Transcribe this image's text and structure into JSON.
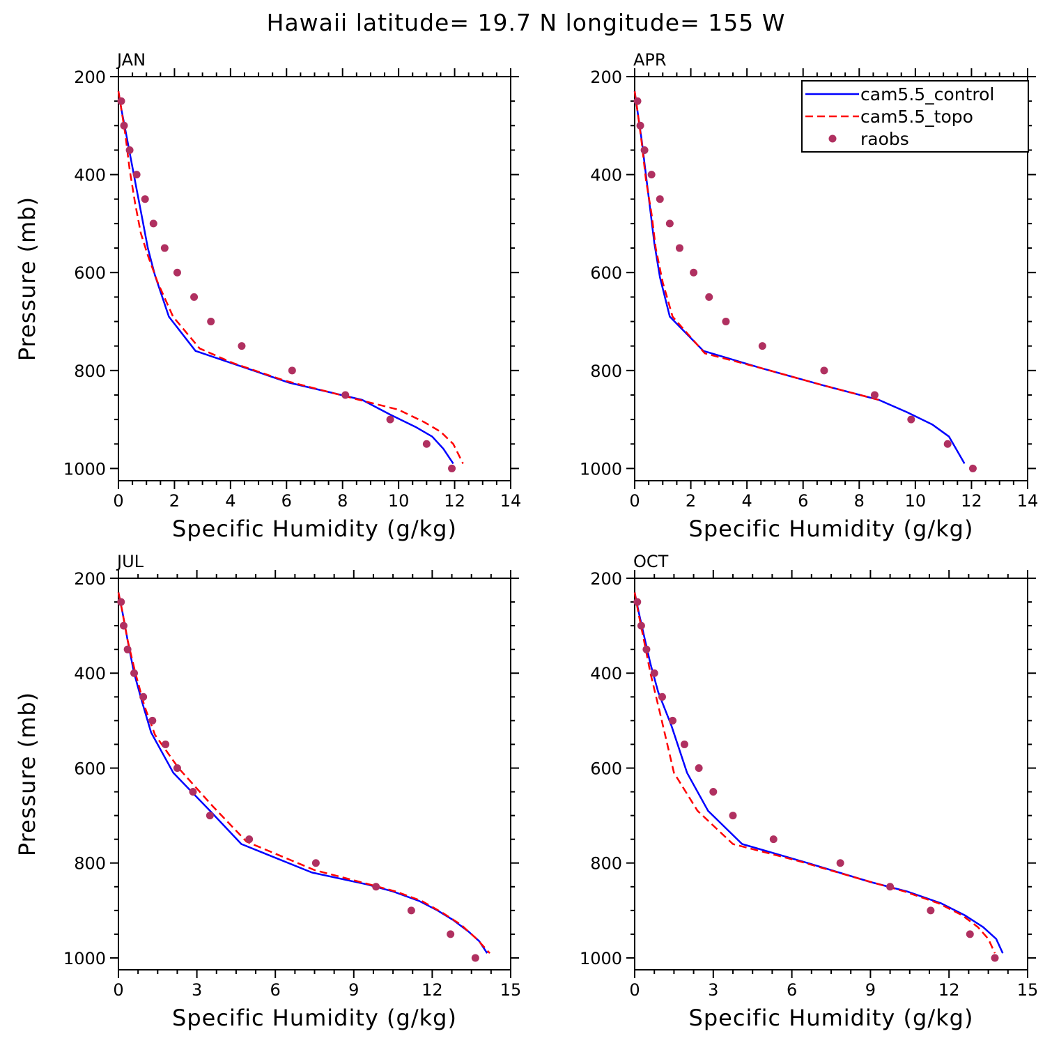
{
  "suptitle": "Hawaii  latitude= 19.7 N longitude= 155 W",
  "colors": {
    "control": "#0000ff",
    "topo": "#ff0000",
    "raobs": "#b03060",
    "axis": "#000000"
  },
  "chart_data": [
    {
      "type": "line",
      "title": "JAN",
      "xlabel": "Specific Humidity (g/kg)",
      "ylabel": "Pressure (mb)",
      "xlim": [
        0,
        14
      ],
      "ylim": [
        200,
        1025
      ],
      "y_inverted": true,
      "xticks": [
        0,
        2,
        4,
        6,
        8,
        10,
        12,
        14
      ],
      "yticks": [
        200,
        400,
        600,
        800,
        1000
      ],
      "series": [
        {
          "name": "cam5.5_control",
          "style": "solid",
          "points": [
            [
              0.0,
              230
            ],
            [
              0.1,
              265
            ],
            [
              0.25,
              310
            ],
            [
              0.45,
              370
            ],
            [
              0.65,
              430
            ],
            [
              0.85,
              490
            ],
            [
              1.05,
              550
            ],
            [
              1.3,
              605
            ],
            [
              1.8,
              690
            ],
            [
              2.75,
              760
            ],
            [
              4.3,
              790
            ],
            [
              6.1,
              825
            ],
            [
              8.7,
              860
            ],
            [
              9.7,
              890
            ],
            [
              10.6,
              915
            ],
            [
              11.2,
              935
            ],
            [
              11.6,
              960
            ],
            [
              11.95,
              990
            ]
          ]
        },
        {
          "name": "cam5.5_topo",
          "style": "dashed",
          "points": [
            [
              0.0,
              230
            ],
            [
              0.1,
              265
            ],
            [
              0.25,
              320
            ],
            [
              0.4,
              390
            ],
            [
              0.6,
              460
            ],
            [
              0.8,
              520
            ],
            [
              1.05,
              565
            ],
            [
              1.4,
              620
            ],
            [
              1.95,
              690
            ],
            [
              2.9,
              755
            ],
            [
              4.1,
              785
            ],
            [
              5.9,
              820
            ],
            [
              8.6,
              860
            ],
            [
              10.0,
              880
            ],
            [
              10.9,
              905
            ],
            [
              11.5,
              925
            ],
            [
              11.95,
              950
            ],
            [
              12.3,
              990
            ]
          ]
        },
        {
          "name": "raobs",
          "style": "markers",
          "points": [
            [
              0.1,
              250
            ],
            [
              0.2,
              300
            ],
            [
              0.4,
              350
            ],
            [
              0.65,
              400
            ],
            [
              0.95,
              450
            ],
            [
              1.25,
              500
            ],
            [
              1.65,
              550
            ],
            [
              2.1,
              600
            ],
            [
              2.7,
              650
            ],
            [
              3.3,
              700
            ],
            [
              4.4,
              750
            ],
            [
              6.2,
              800
            ],
            [
              8.1,
              850
            ],
            [
              9.7,
              900
            ],
            [
              11.0,
              950
            ],
            [
              11.9,
              1000
            ]
          ]
        }
      ]
    },
    {
      "type": "line",
      "title": "APR",
      "xlabel": "Specific Humidity (g/kg)",
      "ylabel": "",
      "xlim": [
        0,
        14
      ],
      "ylim": [
        200,
        1025
      ],
      "y_inverted": true,
      "xticks": [
        0,
        2,
        4,
        6,
        8,
        10,
        12,
        14
      ],
      "yticks": [
        200,
        400,
        600,
        800,
        1000
      ],
      "legend": {
        "position": "top-right",
        "entries": [
          "cam5.5_control",
          "cam5.5_topo",
          "raobs"
        ]
      },
      "series": [
        {
          "name": "cam5.5_control",
          "style": "solid",
          "points": [
            [
              0.0,
              230
            ],
            [
              0.1,
              270
            ],
            [
              0.25,
              330
            ],
            [
              0.4,
              400
            ],
            [
              0.55,
              470
            ],
            [
              0.7,
              540
            ],
            [
              0.9,
              610
            ],
            [
              1.25,
              690
            ],
            [
              2.45,
              760
            ],
            [
              4.5,
              795
            ],
            [
              6.7,
              830
            ],
            [
              8.7,
              860
            ],
            [
              9.7,
              885
            ],
            [
              10.6,
              910
            ],
            [
              11.2,
              935
            ],
            [
              11.5,
              965
            ],
            [
              11.75,
              990
            ]
          ]
        },
        {
          "name": "cam5.5_topo",
          "style": "dashed",
          "points": [
            [
              0.0,
              230
            ],
            [
              0.1,
              270
            ],
            [
              0.25,
              335
            ],
            [
              0.4,
              410
            ],
            [
              0.6,
              480
            ],
            [
              0.75,
              550
            ],
            [
              1.0,
              620
            ],
            [
              1.35,
              690
            ],
            [
              2.5,
              765
            ],
            [
              4.5,
              795
            ],
            [
              6.7,
              830
            ],
            [
              8.7,
              860
            ]
          ]
        },
        {
          "name": "raobs",
          "style": "markers",
          "points": [
            [
              0.1,
              250
            ],
            [
              0.2,
              300
            ],
            [
              0.35,
              350
            ],
            [
              0.6,
              400
            ],
            [
              0.9,
              450
            ],
            [
              1.25,
              500
            ],
            [
              1.6,
              550
            ],
            [
              2.1,
              600
            ],
            [
              2.65,
              650
            ],
            [
              3.25,
              700
            ],
            [
              4.55,
              750
            ],
            [
              6.75,
              800
            ],
            [
              8.55,
              850
            ],
            [
              9.85,
              900
            ],
            [
              11.15,
              950
            ],
            [
              12.05,
              1000
            ]
          ]
        }
      ]
    },
    {
      "type": "line",
      "title": "JUL",
      "xlabel": "Specific Humidity (g/kg)",
      "ylabel": "Pressure (mb)",
      "xlim": [
        0,
        15
      ],
      "ylim": [
        200,
        1025
      ],
      "y_inverted": true,
      "xticks": [
        0,
        3,
        6,
        9,
        12,
        15
      ],
      "yticks": [
        200,
        400,
        600,
        800,
        1000
      ],
      "series": [
        {
          "name": "cam5.5_control",
          "style": "solid",
          "points": [
            [
              0.0,
              230
            ],
            [
              0.15,
              270
            ],
            [
              0.35,
              330
            ],
            [
              0.6,
              400
            ],
            [
              0.9,
              460
            ],
            [
              1.25,
              525
            ],
            [
              2.1,
              610
            ],
            [
              3.5,
              690
            ],
            [
              4.7,
              760
            ],
            [
              7.4,
              820
            ],
            [
              9.5,
              845
            ],
            [
              10.5,
              860
            ],
            [
              11.5,
              880
            ],
            [
              12.2,
              900
            ],
            [
              12.8,
              920
            ],
            [
              13.4,
              945
            ],
            [
              13.8,
              965
            ],
            [
              14.1,
              990
            ]
          ]
        },
        {
          "name": "cam5.5_topo",
          "style": "dashed",
          "points": [
            [
              0.0,
              230
            ],
            [
              0.15,
              270
            ],
            [
              0.35,
              330
            ],
            [
              0.65,
              400
            ],
            [
              1.0,
              470
            ],
            [
              1.4,
              530
            ],
            [
              2.3,
              600
            ],
            [
              3.6,
              680
            ],
            [
              4.9,
              755
            ],
            [
              7.5,
              815
            ],
            [
              9.6,
              845
            ],
            [
              10.6,
              860
            ],
            [
              11.6,
              880
            ],
            [
              12.4,
              905
            ],
            [
              13.1,
              930
            ],
            [
              13.7,
              960
            ],
            [
              14.2,
              990
            ]
          ]
        },
        {
          "name": "raobs",
          "style": "markers",
          "points": [
            [
              0.1,
              250
            ],
            [
              0.2,
              300
            ],
            [
              0.35,
              350
            ],
            [
              0.6,
              400
            ],
            [
              0.95,
              450
            ],
            [
              1.3,
              500
            ],
            [
              1.8,
              550
            ],
            [
              2.25,
              600
            ],
            [
              2.85,
              650
            ],
            [
              3.5,
              700
            ],
            [
              5.0,
              750
            ],
            [
              7.55,
              800
            ],
            [
              9.85,
              850
            ],
            [
              11.2,
              900
            ],
            [
              12.7,
              950
            ],
            [
              13.65,
              1000
            ]
          ]
        }
      ]
    },
    {
      "type": "line",
      "title": "OCT",
      "xlabel": "Specific Humidity (g/kg)",
      "ylabel": "",
      "xlim": [
        0,
        15
      ],
      "ylim": [
        200,
        1025
      ],
      "y_inverted": true,
      "xticks": [
        0,
        3,
        6,
        9,
        12,
        15
      ],
      "yticks": [
        200,
        400,
        600,
        800,
        1000
      ],
      "series": [
        {
          "name": "cam5.5_control",
          "style": "solid",
          "points": [
            [
              0.0,
              230
            ],
            [
              0.15,
              270
            ],
            [
              0.35,
              320
            ],
            [
              0.6,
              380
            ],
            [
              0.9,
              440
            ],
            [
              1.4,
              510
            ],
            [
              2.0,
              610
            ],
            [
              2.8,
              690
            ],
            [
              4.1,
              760
            ],
            [
              6.6,
              800
            ],
            [
              9.0,
              840
            ],
            [
              10.4,
              860
            ],
            [
              11.7,
              885
            ],
            [
              12.6,
              910
            ],
            [
              13.3,
              935
            ],
            [
              13.8,
              960
            ],
            [
              14.05,
              990
            ]
          ]
        },
        {
          "name": "cam5.5_topo",
          "style": "dashed",
          "points": [
            [
              0.0,
              230
            ],
            [
              0.15,
              275
            ],
            [
              0.35,
              330
            ],
            [
              0.6,
              400
            ],
            [
              0.95,
              480
            ],
            [
              1.5,
              610
            ],
            [
              2.4,
              690
            ],
            [
              3.75,
              760
            ],
            [
              6.2,
              795
            ],
            [
              8.7,
              835
            ],
            [
              10.3,
              860
            ],
            [
              11.6,
              885
            ],
            [
              12.5,
              910
            ],
            [
              13.1,
              935
            ],
            [
              13.5,
              960
            ],
            [
              13.75,
              990
            ]
          ]
        },
        {
          "name": "raobs",
          "style": "markers",
          "points": [
            [
              0.1,
              250
            ],
            [
              0.25,
              300
            ],
            [
              0.45,
              350
            ],
            [
              0.75,
              400
            ],
            [
              1.05,
              450
            ],
            [
              1.45,
              500
            ],
            [
              1.9,
              550
            ],
            [
              2.45,
              600
            ],
            [
              3.0,
              650
            ],
            [
              3.75,
              700
            ],
            [
              5.3,
              750
            ],
            [
              7.85,
              800
            ],
            [
              9.75,
              850
            ],
            [
              11.3,
              900
            ],
            [
              12.8,
              950
            ],
            [
              13.75,
              1000
            ]
          ]
        }
      ]
    }
  ]
}
